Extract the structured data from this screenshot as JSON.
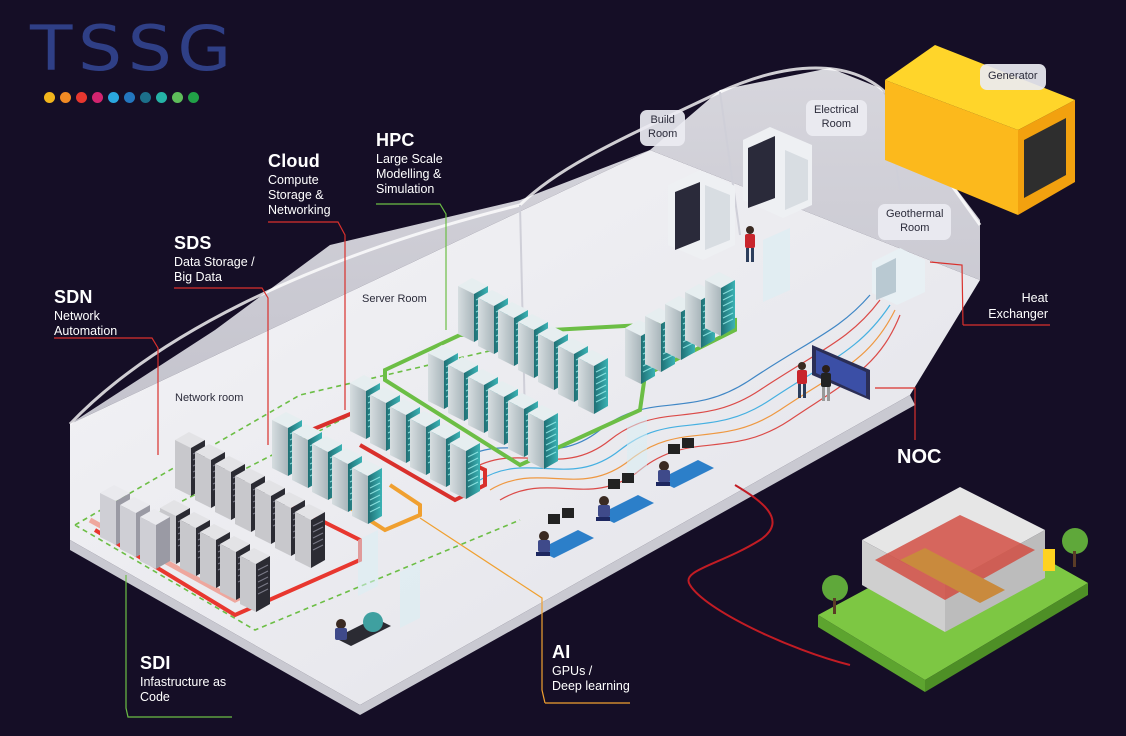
{
  "logo": {
    "text": "TSSG",
    "dot_colors": [
      "#f2b51c",
      "#f08a24",
      "#e8372f",
      "#d3246f",
      "#2aa7df",
      "#2376be",
      "#1c6f8a",
      "#25b3a6",
      "#5ebd5a",
      "#21a147"
    ]
  },
  "labels": {
    "cloud": {
      "title": "Cloud",
      "lines": [
        "Compute",
        "Storage &",
        "Networking"
      ]
    },
    "hpc": {
      "title": "HPC",
      "lines": [
        "Large Scale",
        "Modelling &",
        "Simulation"
      ]
    },
    "sds": {
      "title": "SDS",
      "lines": [
        "Data Storage /",
        "Big Data"
      ]
    },
    "sdn": {
      "title": "SDN",
      "lines": [
        "Network",
        "Automation"
      ]
    },
    "sdi": {
      "title": "SDI",
      "lines": [
        "Infastructure as",
        "Code"
      ]
    },
    "ai": {
      "title": "AI",
      "lines": [
        "GPUs /",
        "Deep learning"
      ]
    },
    "noc": "NOC",
    "heat_exchanger": [
      "Heat",
      "Exchanger"
    ]
  },
  "rooms": {
    "server_room": "Server Room",
    "network_room": "Network room",
    "build_room": [
      "Build",
      "Room"
    ],
    "electrical_room": [
      "Electrical",
      "Room"
    ],
    "geothermal_room": [
      "Geothermal",
      "Room"
    ],
    "generator": "Generator"
  },
  "colors": {
    "background": "#150e26",
    "cloud_line": "#d9302c",
    "hpc_line": "#6cbe45",
    "sds_line": "#d9302c",
    "sdn_line": "#d9302c",
    "sdi_line": "#6cbe45",
    "ai_line": "#f0a030",
    "generator": "#fcc419"
  }
}
